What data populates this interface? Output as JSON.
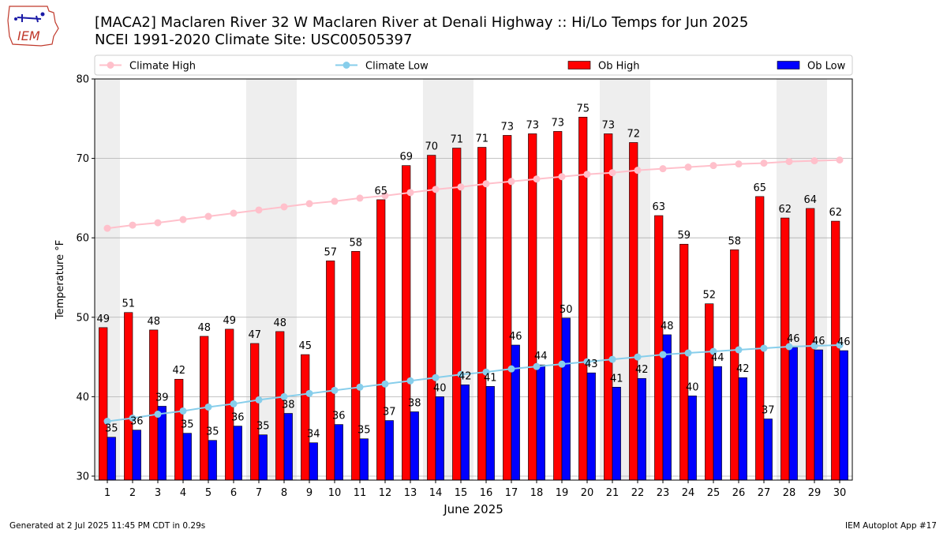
{
  "header": {
    "logo_text": "IEM",
    "title_line1": "[MACA2] Maclaren River 32 W Maclaren River at Denali Highway :: Hi/Lo Temps for Jun 2025",
    "title_line2": "NCEI 1991-2020 Climate Site: USC00505397"
  },
  "footer": {
    "generated": "Generated at 2 Jul 2025 11:45 PM CDT in 0.29s",
    "app": "IEM Autoplot App #17"
  },
  "colors": {
    "ob_high": "#ff0000",
    "ob_low": "#0000ff",
    "climate_high": "#ffc0cb",
    "climate_low": "#87ceeb",
    "weekend_band": "#eeeeee",
    "grid": "#b0b0b0"
  },
  "chart_data": {
    "type": "bar",
    "xlabel": "June 2025",
    "ylabel": "Temperature °F",
    "ylim": [
      29.5,
      80
    ],
    "yticks": [
      30,
      40,
      50,
      60,
      70,
      80
    ],
    "grid": "horizontal",
    "legend_placement": "top",
    "categories": [
      "1",
      "2",
      "3",
      "4",
      "5",
      "6",
      "7",
      "8",
      "9",
      "10",
      "11",
      "12",
      "13",
      "14",
      "15",
      "16",
      "17",
      "18",
      "19",
      "20",
      "21",
      "22",
      "23",
      "24",
      "25",
      "26",
      "27",
      "28",
      "29",
      "30"
    ],
    "shaded_days": [
      1,
      7,
      8,
      14,
      15,
      21,
      22,
      28,
      29
    ],
    "series": [
      {
        "name": "Ob High",
        "kind": "bar",
        "values": [
          48.7,
          50.6,
          48.4,
          42.2,
          47.6,
          48.5,
          46.7,
          48.2,
          45.3,
          57.1,
          58.3,
          64.8,
          69.1,
          70.4,
          71.3,
          71.4,
          72.9,
          73.1,
          73.4,
          75.2,
          73.1,
          72.0,
          62.8,
          59.2,
          51.7,
          58.5,
          65.2,
          62.5,
          63.7,
          62.1
        ],
        "labels": [
          "49",
          "51",
          "48",
          "42",
          "48",
          "49",
          "47",
          "48",
          "45",
          "57",
          "58",
          "65",
          "69",
          "70",
          "71",
          "71",
          "73",
          "73",
          "73",
          "75",
          "73",
          "72",
          "63",
          "59",
          "52",
          "58",
          "65",
          "62",
          "64",
          "62"
        ]
      },
      {
        "name": "Ob Low",
        "kind": "bar",
        "values": [
          34.9,
          35.8,
          38.8,
          35.4,
          34.5,
          36.3,
          35.2,
          37.9,
          34.2,
          36.5,
          34.7,
          37.0,
          38.1,
          40.0,
          41.5,
          41.3,
          46.5,
          44.0,
          49.9,
          43.0,
          41.2,
          42.3,
          47.8,
          40.1,
          43.8,
          42.4,
          37.2,
          46.2,
          45.9,
          45.8
        ],
        "labels": [
          "35",
          "36",
          "39",
          "35",
          "35",
          "36",
          "35",
          "38",
          "34",
          "36",
          "35",
          "37",
          "38",
          "40",
          "42",
          "41",
          "46",
          "44",
          "50",
          "43",
          "41",
          "42",
          "48",
          "40",
          "44",
          "42",
          "37",
          "46",
          "46",
          "46"
        ]
      },
      {
        "name": "Climate High",
        "kind": "line",
        "values": [
          61.2,
          61.6,
          61.9,
          62.3,
          62.7,
          63.1,
          63.5,
          63.9,
          64.3,
          64.6,
          65.0,
          65.3,
          65.7,
          66.1,
          66.4,
          66.8,
          67.1,
          67.4,
          67.7,
          68.0,
          68.2,
          68.5,
          68.7,
          68.9,
          69.1,
          69.3,
          69.4,
          69.6,
          69.7,
          69.8
        ]
      },
      {
        "name": "Climate Low",
        "kind": "line",
        "values": [
          36.9,
          37.3,
          37.8,
          38.2,
          38.7,
          39.1,
          39.6,
          40.0,
          40.4,
          40.8,
          41.2,
          41.6,
          42.0,
          42.4,
          42.8,
          43.1,
          43.5,
          43.8,
          44.1,
          44.4,
          44.7,
          45.0,
          45.3,
          45.5,
          45.7,
          45.9,
          46.1,
          46.3,
          46.4,
          46.5
        ]
      }
    ]
  }
}
